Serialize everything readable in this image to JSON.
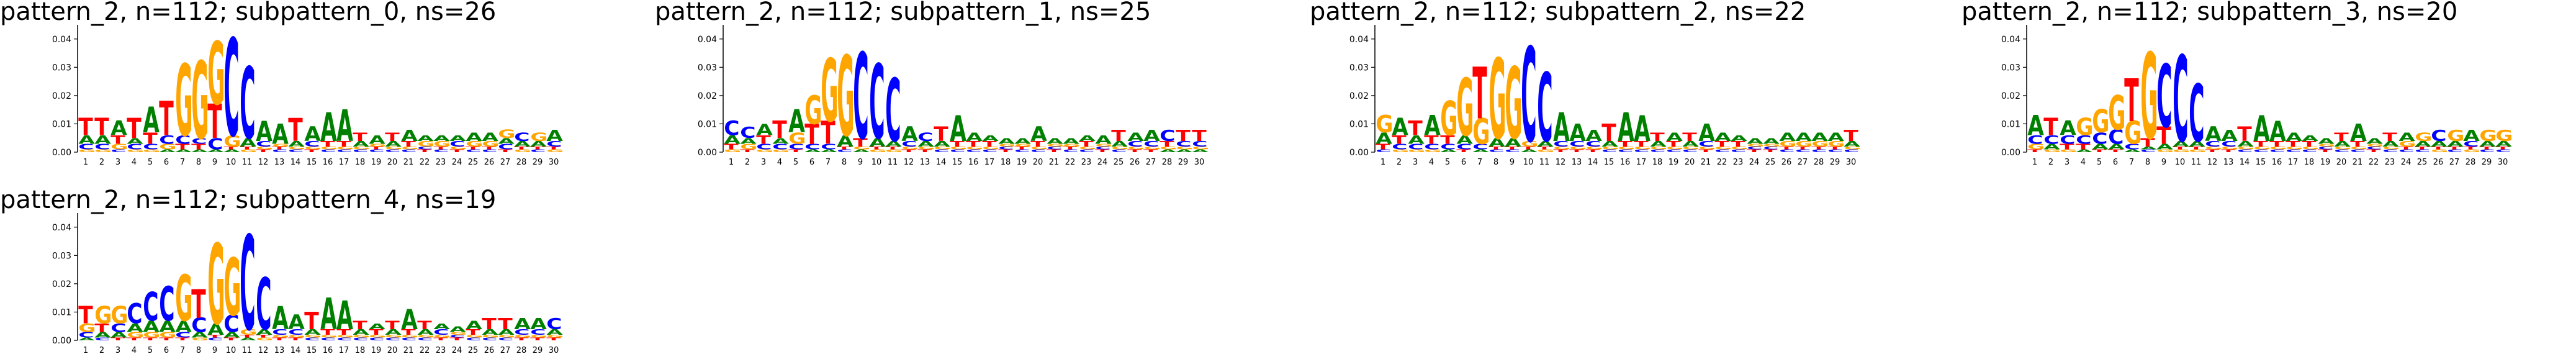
{
  "chart_data": [
    {
      "type": "sequence-logo",
      "title": "pattern_2, n=112; subpattern_0, ns=26",
      "ylim": [
        0,
        0.045
      ],
      "yticks": [
        "0.00",
        "0.01",
        "0.02",
        "0.03",
        "0.04"
      ],
      "xticks": [
        "1",
        "2",
        "3",
        "4",
        "5",
        "6",
        "7",
        "8",
        "9",
        "10",
        "11",
        "12",
        "13",
        "14",
        "15",
        "16",
        "17",
        "18",
        "19",
        "20",
        "21",
        "22",
        "23",
        "24",
        "25",
        "26",
        "27",
        "28",
        "29",
        "30"
      ],
      "columns": [
        {
          "T": 0.006,
          "A": 0.003,
          "C": 0.002,
          "G": 0.001
        },
        {
          "T": 0.006,
          "A": 0.003,
          "C": 0.002,
          "G": 0.001
        },
        {
          "A": 0.005,
          "T": 0.003,
          "G": 0.002,
          "C": 0.001
        },
        {
          "T": 0.007,
          "C": 0.002,
          "A": 0.002,
          "G": 0.001
        },
        {
          "A": 0.009,
          "T": 0.004,
          "C": 0.002,
          "G": 0.001
        },
        {
          "T": 0.012,
          "C": 0.003,
          "G": 0.002,
          "A": 0.001
        },
        {
          "G": 0.025,
          "C": 0.003,
          "T": 0.002,
          "A": 0.001
        },
        {
          "G": 0.027,
          "T": 0.002,
          "C": 0.002,
          "A": 0.001
        },
        {
          "G": 0.022,
          "T": 0.012,
          "C": 0.004,
          "A": 0.001
        },
        {
          "C": 0.034,
          "G": 0.004,
          "A": 0.001,
          "T": 0.001
        },
        {
          "C": 0.025,
          "A": 0.003,
          "G": 0.001,
          "T": 0.001
        },
        {
          "A": 0.007,
          "C": 0.002,
          "T": 0.001,
          "G": 0.001
        },
        {
          "A": 0.007,
          "C": 0.001,
          "T": 0.001,
          "G": 0.001
        },
        {
          "T": 0.008,
          "A": 0.002,
          "C": 0.001,
          "G": 0.001
        },
        {
          "A": 0.005,
          "C": 0.002,
          "T": 0.001,
          "G": 0.001
        },
        {
          "A": 0.01,
          "T": 0.002,
          "C": 0.001,
          "G": 0.001
        },
        {
          "A": 0.011,
          "T": 0.002,
          "C": 0.001,
          "G": 0.001
        },
        {
          "T": 0.003,
          "A": 0.002,
          "C": 0.001,
          "G": 0.001
        },
        {
          "A": 0.003,
          "C": 0.001,
          "T": 0.001,
          "G": 0.001
        },
        {
          "T": 0.003,
          "A": 0.002,
          "C": 0.001,
          "G": 0.001
        },
        {
          "A": 0.004,
          "T": 0.002,
          "C": 0.001,
          "G": 0.001
        },
        {
          "G": 0.002,
          "A": 0.002,
          "T": 0.001,
          "C": 0.001
        },
        {
          "G": 0.002,
          "A": 0.002,
          "C": 0.001,
          "T": 0.001
        },
        {
          "C": 0.002,
          "A": 0.002,
          "T": 0.001,
          "G": 0.001
        },
        {
          "A": 0.003,
          "G": 0.002,
          "C": 0.001,
          "T": 0.001
        },
        {
          "A": 0.003,
          "G": 0.002,
          "C": 0.001,
          "T": 0.001
        },
        {
          "G": 0.003,
          "C": 0.002,
          "A": 0.002,
          "T": 0.001
        },
        {
          "C": 0.003,
          "A": 0.002,
          "G": 0.001,
          "T": 0.001
        },
        {
          "G": 0.003,
          "A": 0.002,
          "C": 0.001,
          "T": 0.001
        },
        {
          "A": 0.004,
          "C": 0.002,
          "G": 0.001,
          "T": 0.001
        }
      ]
    },
    {
      "type": "sequence-logo",
      "title": "pattern_2, n=112; subpattern_1, ns=25",
      "ylim": [
        0,
        0.045
      ],
      "yticks": [
        "0.00",
        "0.01",
        "0.02",
        "0.03",
        "0.04"
      ],
      "xticks": [
        "1",
        "2",
        "3",
        "4",
        "5",
        "6",
        "7",
        "8",
        "9",
        "10",
        "11",
        "12",
        "13",
        "14",
        "15",
        "16",
        "17",
        "18",
        "19",
        "20",
        "21",
        "22",
        "23",
        "24",
        "25",
        "26",
        "27",
        "28",
        "29",
        "30"
      ],
      "columns": [
        {
          "C": 0.005,
          "A": 0.003,
          "T": 0.002,
          "G": 0.001
        },
        {
          "C": 0.004,
          "G": 0.002,
          "A": 0.002,
          "T": 0.001
        },
        {
          "A": 0.004,
          "T": 0.003,
          "C": 0.002,
          "G": 0.001
        },
        {
          "T": 0.006,
          "C": 0.002,
          "A": 0.002,
          "G": 0.001
        },
        {
          "A": 0.008,
          "G": 0.004,
          "C": 0.002,
          "T": 0.001
        },
        {
          "G": 0.01,
          "T": 0.007,
          "C": 0.002,
          "A": 0.001
        },
        {
          "G": 0.022,
          "T": 0.008,
          "C": 0.002,
          "A": 0.001
        },
        {
          "G": 0.028,
          "A": 0.004,
          "C": 0.001,
          "T": 0.001
        },
        {
          "C": 0.03,
          "T": 0.003,
          "A": 0.001,
          "G": 0.001
        },
        {
          "C": 0.026,
          "A": 0.003,
          "G": 0.001,
          "T": 0.001
        },
        {
          "C": 0.022,
          "A": 0.002,
          "G": 0.001,
          "T": 0.001
        },
        {
          "A": 0.005,
          "C": 0.002,
          "T": 0.001,
          "G": 0.001
        },
        {
          "C": 0.003,
          "A": 0.002,
          "T": 0.001,
          "G": 0.001
        },
        {
          "T": 0.005,
          "A": 0.002,
          "C": 0.001,
          "G": 0.001
        },
        {
          "A": 0.009,
          "T": 0.002,
          "C": 0.001,
          "G": 0.001
        },
        {
          "A": 0.003,
          "T": 0.002,
          "C": 0.001,
          "G": 0.001
        },
        {
          "T": 0.002,
          "A": 0.002,
          "C": 0.001,
          "G": 0.001
        },
        {
          "A": 0.002,
          "T": 0.001,
          "C": 0.001,
          "G": 0.001
        },
        {
          "A": 0.002,
          "C": 0.001,
          "T": 0.001,
          "G": 0.001
        },
        {
          "A": 0.005,
          "T": 0.002,
          "C": 0.001,
          "G": 0.001
        },
        {
          "A": 0.002,
          "T": 0.001,
          "C": 0.001,
          "G": 0.001
        },
        {
          "A": 0.002,
          "C": 0.001,
          "T": 0.001,
          "G": 0.001
        },
        {
          "T": 0.002,
          "A": 0.002,
          "C": 0.001,
          "G": 0.001
        },
        {
          "A": 0.003,
          "T": 0.001,
          "C": 0.001,
          "G": 0.001
        },
        {
          "T": 0.004,
          "A": 0.002,
          "C": 0.001,
          "G": 0.001
        },
        {
          "A": 0.003,
          "C": 0.002,
          "T": 0.001,
          "G": 0.001
        },
        {
          "A": 0.004,
          "C": 0.002,
          "T": 0.001,
          "G": 0.001
        },
        {
          "C": 0.004,
          "T": 0.002,
          "A": 0.001,
          "G": 0.001
        },
        {
          "T": 0.004,
          "C": 0.002,
          "A": 0.001,
          "G": 0.001
        },
        {
          "T": 0.004,
          "C": 0.002,
          "A": 0.001,
          "G": 0.001
        }
      ]
    },
    {
      "type": "sequence-logo",
      "title": "pattern_2, n=112; subpattern_2, ns=22",
      "ylim": [
        0,
        0.045
      ],
      "yticks": [
        "0.00",
        "0.01",
        "0.02",
        "0.03",
        "0.04"
      ],
      "xticks": [
        "1",
        "2",
        "3",
        "4",
        "5",
        "6",
        "7",
        "8",
        "9",
        "10",
        "11",
        "12",
        "13",
        "14",
        "15",
        "16",
        "17",
        "18",
        "19",
        "20",
        "21",
        "22",
        "23",
        "24",
        "25",
        "26",
        "27",
        "28",
        "29",
        "30"
      ],
      "columns": [
        {
          "G": 0.006,
          "A": 0.004,
          "T": 0.002,
          "C": 0.001
        },
        {
          "A": 0.006,
          "T": 0.003,
          "C": 0.002,
          "G": 0.001
        },
        {
          "T": 0.005,
          "A": 0.003,
          "C": 0.002,
          "G": 0.001
        },
        {
          "A": 0.007,
          "T": 0.003,
          "C": 0.002,
          "G": 0.001
        },
        {
          "G": 0.012,
          "T": 0.003,
          "C": 0.002,
          "A": 0.001
        },
        {
          "G": 0.02,
          "A": 0.003,
          "C": 0.002,
          "T": 0.001
        },
        {
          "T": 0.018,
          "G": 0.009,
          "C": 0.002,
          "A": 0.001
        },
        {
          "G": 0.028,
          "A": 0.003,
          "C": 0.001,
          "T": 0.001
        },
        {
          "G": 0.025,
          "A": 0.003,
          "C": 0.001,
          "T": 0.001
        },
        {
          "C": 0.033,
          "G": 0.002,
          "A": 0.001,
          "T": 0.001
        },
        {
          "C": 0.024,
          "A": 0.002,
          "G": 0.001,
          "T": 0.001
        },
        {
          "A": 0.01,
          "C": 0.002,
          "T": 0.001,
          "G": 0.001
        },
        {
          "A": 0.006,
          "C": 0.002,
          "T": 0.001,
          "G": 0.001
        },
        {
          "A": 0.004,
          "C": 0.002,
          "T": 0.001,
          "G": 0.001
        },
        {
          "T": 0.006,
          "A": 0.002,
          "C": 0.001,
          "G": 0.001
        },
        {
          "A": 0.01,
          "T": 0.002,
          "C": 0.001,
          "G": 0.001
        },
        {
          "A": 0.009,
          "T": 0.002,
          "C": 0.001,
          "G": 0.001
        },
        {
          "T": 0.003,
          "A": 0.002,
          "C": 0.001,
          "G": 0.001
        },
        {
          "A": 0.003,
          "T": 0.002,
          "C": 0.001,
          "G": 0.001
        },
        {
          "T": 0.003,
          "A": 0.002,
          "C": 0.001,
          "G": 0.001
        },
        {
          "A": 0.006,
          "C": 0.002,
          "T": 0.001,
          "G": 0.001
        },
        {
          "A": 0.003,
          "T": 0.002,
          "C": 0.001,
          "G": 0.001
        },
        {
          "T": 0.002,
          "A": 0.002,
          "C": 0.001,
          "G": 0.001
        },
        {
          "A": 0.002,
          "T": 0.001,
          "C": 0.001,
          "G": 0.001
        },
        {
          "A": 0.002,
          "T": 0.001,
          "C": 0.001,
          "G": 0.001
        },
        {
          "A": 0.003,
          "G": 0.002,
          "C": 0.001,
          "T": 0.001
        },
        {
          "A": 0.003,
          "G": 0.002,
          "C": 0.001,
          "T": 0.001
        },
        {
          "A": 0.003,
          "G": 0.002,
          "C": 0.001,
          "T": 0.001
        },
        {
          "A": 0.003,
          "G": 0.002,
          "C": 0.001,
          "T": 0.001
        },
        {
          "T": 0.004,
          "A": 0.002,
          "C": 0.001,
          "G": 0.001
        }
      ]
    },
    {
      "type": "sequence-logo",
      "title": "pattern_2, n=112; subpattern_3, ns=20",
      "ylim": [
        0,
        0.045
      ],
      "yticks": [
        "0.00",
        "0.01",
        "0.02",
        "0.03",
        "0.04"
      ],
      "xticks": [
        "1",
        "2",
        "3",
        "4",
        "5",
        "6",
        "7",
        "8",
        "9",
        "10",
        "11",
        "12",
        "13",
        "14",
        "15",
        "16",
        "17",
        "18",
        "19",
        "20",
        "21",
        "22",
        "23",
        "24",
        "25",
        "26",
        "27",
        "28",
        "29",
        "30"
      ],
      "columns": [
        {
          "A": 0.007,
          "C": 0.003,
          "G": 0.002,
          "T": 0.001
        },
        {
          "T": 0.006,
          "C": 0.003,
          "A": 0.002,
          "G": 0.001
        },
        {
          "A": 0.005,
          "C": 0.003,
          "T": 0.002,
          "G": 0.001
        },
        {
          "G": 0.006,
          "C": 0.003,
          "T": 0.002,
          "A": 0.001
        },
        {
          "G": 0.008,
          "C": 0.004,
          "A": 0.002,
          "T": 0.001
        },
        {
          "G": 0.012,
          "C": 0.005,
          "A": 0.002,
          "T": 0.001
        },
        {
          "T": 0.015,
          "G": 0.008,
          "C": 0.002,
          "A": 0.001
        },
        {
          "G": 0.03,
          "T": 0.003,
          "C": 0.001,
          "A": 0.001
        },
        {
          "C": 0.022,
          "T": 0.006,
          "A": 0.002,
          "G": 0.001
        },
        {
          "C": 0.03,
          "A": 0.002,
          "G": 0.001,
          "T": 0.001
        },
        {
          "C": 0.02,
          "A": 0.002,
          "G": 0.001,
          "T": 0.001
        },
        {
          "A": 0.005,
          "C": 0.002,
          "T": 0.001,
          "G": 0.001
        },
        {
          "A": 0.004,
          "C": 0.002,
          "T": 0.001,
          "G": 0.001
        },
        {
          "T": 0.005,
          "A": 0.002,
          "C": 0.001,
          "G": 0.001
        },
        {
          "A": 0.009,
          "T": 0.002,
          "C": 0.001,
          "G": 0.001
        },
        {
          "A": 0.007,
          "T": 0.002,
          "C": 0.001,
          "G": 0.001
        },
        {
          "A": 0.003,
          "T": 0.002,
          "C": 0.001,
          "G": 0.001
        },
        {
          "T": 0.002,
          "A": 0.002,
          "C": 0.001,
          "G": 0.001
        },
        {
          "A": 0.002,
          "T": 0.001,
          "C": 0.001,
          "G": 0.001
        },
        {
          "T": 0.003,
          "A": 0.002,
          "C": 0.001,
          "G": 0.001
        },
        {
          "A": 0.006,
          "T": 0.002,
          "C": 0.001,
          "G": 0.001
        },
        {
          "A": 0.002,
          "T": 0.001,
          "C": 0.001,
          "G": 0.001
        },
        {
          "T": 0.003,
          "A": 0.002,
          "C": 0.001,
          "G": 0.001
        },
        {
          "A": 0.003,
          "G": 0.002,
          "C": 0.001,
          "T": 0.001
        },
        {
          "G": 0.003,
          "A": 0.002,
          "C": 0.001,
          "T": 0.001
        },
        {
          "C": 0.004,
          "A": 0.002,
          "G": 0.001,
          "T": 0.001
        },
        {
          "G": 0.004,
          "A": 0.002,
          "C": 0.001,
          "T": 0.001
        },
        {
          "A": 0.004,
          "C": 0.002,
          "G": 0.001,
          "T": 0.001
        },
        {
          "G": 0.004,
          "A": 0.002,
          "C": 0.001,
          "T": 0.001
        },
        {
          "G": 0.004,
          "A": 0.002,
          "C": 0.001,
          "T": 0.001
        }
      ]
    },
    {
      "type": "sequence-logo",
      "title": "pattern_2, n=112; subpattern_4, ns=19",
      "ylim": [
        0,
        0.045
      ],
      "yticks": [
        "0.00",
        "0.01",
        "0.02",
        "0.03",
        "0.04"
      ],
      "xticks": [
        "1",
        "2",
        "3",
        "4",
        "5",
        "6",
        "7",
        "8",
        "9",
        "10",
        "11",
        "12",
        "13",
        "14",
        "15",
        "16",
        "17",
        "18",
        "19",
        "20",
        "21",
        "22",
        "23",
        "24",
        "25",
        "26",
        "27",
        "28",
        "29",
        "30"
      ],
      "columns": [
        {
          "T": 0.006,
          "G": 0.003,
          "C": 0.002,
          "A": 0.001
        },
        {
          "G": 0.006,
          "T": 0.003,
          "A": 0.002,
          "C": 0.001
        },
        {
          "G": 0.006,
          "C": 0.003,
          "A": 0.002,
          "T": 0.001
        },
        {
          "C": 0.007,
          "A": 0.003,
          "G": 0.002,
          "T": 0.001
        },
        {
          "C": 0.01,
          "A": 0.004,
          "G": 0.002,
          "T": 0.001
        },
        {
          "C": 0.012,
          "A": 0.004,
          "G": 0.002,
          "T": 0.001
        },
        {
          "G": 0.016,
          "A": 0.004,
          "C": 0.002,
          "T": 0.001
        },
        {
          "T": 0.01,
          "C": 0.005,
          "A": 0.002,
          "G": 0.001
        },
        {
          "G": 0.028,
          "A": 0.004,
          "C": 0.001,
          "T": 0.001
        },
        {
          "G": 0.02,
          "C": 0.006,
          "A": 0.002,
          "T": 0.001
        },
        {
          "C": 0.033,
          "G": 0.002,
          "A": 0.001,
          "T": 0.001
        },
        {
          "C": 0.018,
          "A": 0.002,
          "G": 0.001,
          "T": 0.001
        },
        {
          "A": 0.008,
          "C": 0.002,
          "T": 0.001,
          "G": 0.001
        },
        {
          "A": 0.005,
          "C": 0.002,
          "T": 0.001,
          "G": 0.001
        },
        {
          "T": 0.006,
          "A": 0.002,
          "C": 0.001,
          "G": 0.001
        },
        {
          "A": 0.011,
          "T": 0.002,
          "C": 0.001,
          "G": 0.001
        },
        {
          "A": 0.01,
          "T": 0.002,
          "C": 0.001,
          "G": 0.001
        },
        {
          "T": 0.003,
          "A": 0.002,
          "C": 0.001,
          "G": 0.001
        },
        {
          "T": 0.002,
          "A": 0.002,
          "C": 0.001,
          "G": 0.001
        },
        {
          "T": 0.003,
          "A": 0.002,
          "C": 0.001,
          "G": 0.001
        },
        {
          "A": 0.007,
          "T": 0.002,
          "C": 0.001,
          "G": 0.001
        },
        {
          "T": 0.003,
          "A": 0.002,
          "C": 0.001,
          "G": 0.001
        },
        {
          "C": 0.002,
          "A": 0.002,
          "T": 0.001,
          "G": 0.001
        },
        {
          "A": 0.002,
          "T": 0.001,
          "C": 0.001,
          "G": 0.001
        },
        {
          "A": 0.003,
          "T": 0.002,
          "C": 0.001,
          "G": 0.001
        },
        {
          "T": 0.004,
          "A": 0.002,
          "C": 0.001,
          "G": 0.001
        },
        {
          "T": 0.004,
          "A": 0.002,
          "C": 0.001,
          "G": 0.001
        },
        {
          "A": 0.004,
          "C": 0.002,
          "T": 0.001,
          "G": 0.001
        },
        {
          "A": 0.004,
          "C": 0.002,
          "T": 0.001,
          "G": 0.001
        },
        {
          "C": 0.004,
          "A": 0.002,
          "T": 0.001,
          "G": 0.001
        }
      ]
    }
  ],
  "base_colors": {
    "A": "#008000",
    "C": "#0000ff",
    "G": "#ffa500",
    "T": "#ff0000"
  }
}
